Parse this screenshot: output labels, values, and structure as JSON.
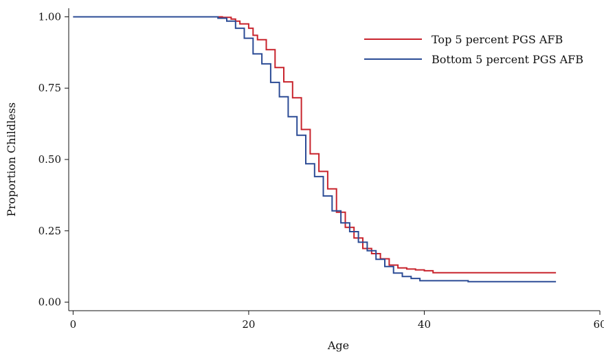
{
  "chart_data": {
    "type": "line",
    "title": "",
    "xlabel": "Age",
    "ylabel": "Proportion Childless",
    "xlim": [
      -0.5,
      60
    ],
    "ylim": [
      -0.03,
      1.03
    ],
    "xticks": [
      0,
      20,
      40,
      60
    ],
    "xtick_labels": [
      "0",
      "20",
      "40",
      "60"
    ],
    "yticks": [
      0,
      0.25,
      0.5,
      0.75,
      1
    ],
    "ytick_labels": [
      "0.00",
      "0.25",
      "0.50",
      "0.75",
      "1.00"
    ],
    "grid": false,
    "legend_position": "top-right",
    "step": true,
    "series": [
      {
        "name": "Top 5 percent PGS AFB",
        "color": "#c8232c",
        "x": [
          0,
          17,
          18,
          18.5,
          19,
          20,
          20.5,
          21,
          22,
          23,
          24,
          25,
          26,
          27,
          28,
          29,
          30,
          31,
          32,
          33,
          34,
          35,
          36,
          37,
          38,
          39,
          40,
          41,
          55
        ],
        "y": [
          1.0,
          0.998,
          0.992,
          0.985,
          0.975,
          0.96,
          0.935,
          0.92,
          0.885,
          0.822,
          0.772,
          0.716,
          0.605,
          0.52,
          0.458,
          0.397,
          0.315,
          0.262,
          0.225,
          0.188,
          0.17,
          0.152,
          0.13,
          0.12,
          0.116,
          0.113,
          0.11,
          0.103,
          0.103
        ]
      },
      {
        "name": "Bottom 5 percent PGS AFB",
        "color": "#2b4b95",
        "x": [
          0,
          16.5,
          17.5,
          18.5,
          19.5,
          20.5,
          21.5,
          22.5,
          23.5,
          24.5,
          25.5,
          26.5,
          27.5,
          28.5,
          29.5,
          30.5,
          31.5,
          32.5,
          33.5,
          34.5,
          35.5,
          36.5,
          37.5,
          38.5,
          39.5,
          45,
          55
        ],
        "y": [
          1.0,
          0.995,
          0.985,
          0.96,
          0.925,
          0.87,
          0.835,
          0.77,
          0.72,
          0.65,
          0.585,
          0.485,
          0.44,
          0.372,
          0.32,
          0.278,
          0.247,
          0.21,
          0.18,
          0.15,
          0.125,
          0.102,
          0.09,
          0.083,
          0.075,
          0.072,
          0.072
        ]
      }
    ]
  }
}
